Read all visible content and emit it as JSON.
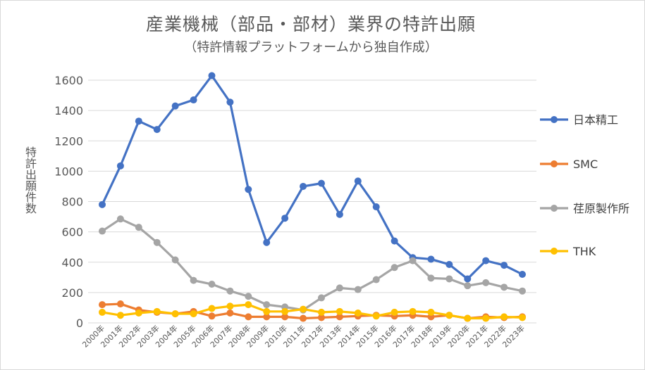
{
  "chart_data": {
    "type": "line",
    "title": "産業機械（部品・部材）業界の特許出願",
    "subtitle": "（特許情報プラットフォームから独自作成）",
    "ylabel": "特許出願件数",
    "xlabel": "",
    "ylim": [
      0,
      1600
    ],
    "yticks": [
      0,
      200,
      400,
      600,
      800,
      1000,
      1200,
      1400,
      1600
    ],
    "grid": true,
    "legend_position": "right",
    "categories": [
      "2000年",
      "2001年",
      "2002年",
      "2003年",
      "2004年",
      "2005年",
      "2006年",
      "2007年",
      "2008年",
      "2009年",
      "2010年",
      "2011年",
      "2012年",
      "2013年",
      "2014年",
      "2015年",
      "2016年",
      "2017年",
      "2018年",
      "2019年",
      "2020年",
      "2021年",
      "2022年",
      "2023年"
    ],
    "series": [
      {
        "name": "日本精工",
        "color": "#4472c4",
        "values": [
          780,
          1035,
          1330,
          1275,
          1430,
          1470,
          1630,
          1455,
          880,
          530,
          690,
          900,
          920,
          715,
          935,
          765,
          540,
          430,
          420,
          385,
          290,
          410,
          380,
          320
        ]
      },
      {
        "name": "SMC",
        "color": "#ed7d31",
        "values": [
          120,
          125,
          85,
          70,
          60,
          75,
          45,
          65,
          40,
          40,
          40,
          30,
          35,
          40,
          45,
          50,
          45,
          50,
          40,
          50,
          30,
          40,
          35,
          40
        ]
      },
      {
        "name": "荏原製作所",
        "color": "#a5a5a5",
        "values": [
          605,
          685,
          630,
          530,
          415,
          280,
          255,
          210,
          175,
          120,
          105,
          85,
          165,
          230,
          220,
          285,
          365,
          410,
          295,
          290,
          245,
          265,
          235,
          210
        ]
      },
      {
        "name": "THK",
        "color": "#ffc000",
        "values": [
          70,
          50,
          65,
          75,
          60,
          60,
          95,
          110,
          120,
          75,
          75,
          90,
          70,
          75,
          65,
          45,
          70,
          75,
          70,
          50,
          30,
          30,
          40,
          35
        ]
      }
    ]
  }
}
